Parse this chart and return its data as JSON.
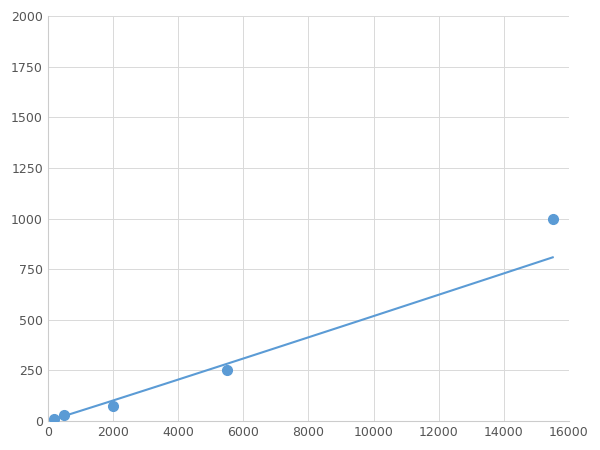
{
  "x_points": [
    200,
    500,
    2000,
    5500,
    15500
  ],
  "y_points": [
    10,
    30,
    75,
    250,
    1000
  ],
  "line_color": "#5b9bd5",
  "marker_color": "#5b9bd5",
  "marker_size": 7,
  "xlim": [
    0,
    16000
  ],
  "ylim": [
    0,
    2000
  ],
  "xticks": [
    0,
    2000,
    4000,
    6000,
    8000,
    10000,
    12000,
    14000,
    16000
  ],
  "yticks": [
    0,
    250,
    500,
    750,
    1000,
    1250,
    1500,
    1750,
    2000
  ],
  "grid": true,
  "background_color": "#ffffff",
  "grid_color": "#d9d9d9"
}
